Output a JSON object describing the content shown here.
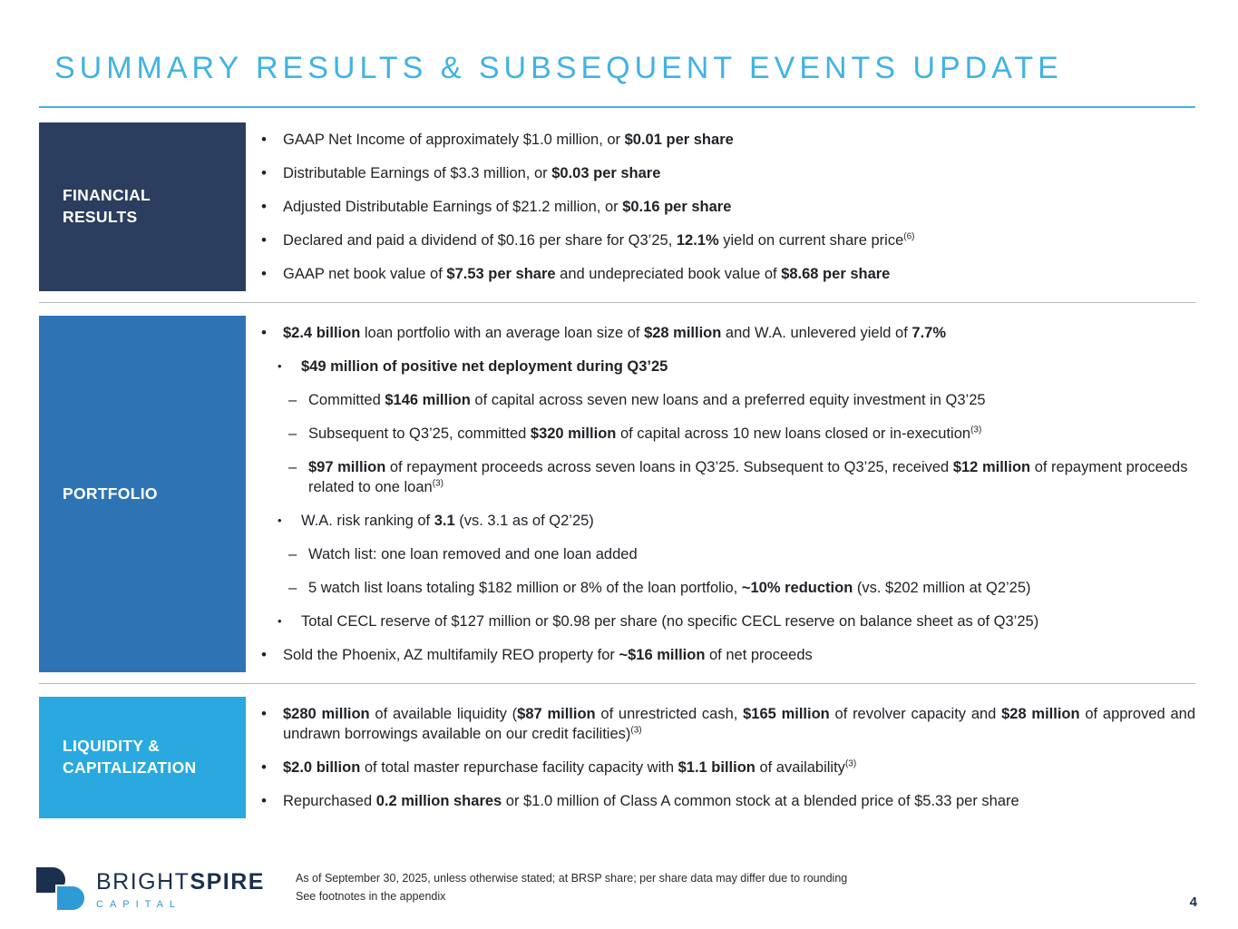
{
  "title": "SUMMARY RESULTS & SUBSEQUENT EVENTS UPDATE",
  "colors": {
    "title": "#41b3e2",
    "rule": "#41b3e2",
    "financial": "#2b3e60",
    "portfolio": "#2e74b5",
    "liquidity": "#29a9e0",
    "divider": "#b5b9bf",
    "text": "#1e2126",
    "page_number": "#1b2f4e"
  },
  "markers": {
    "dot": "•",
    "dash": "–"
  },
  "sections": [
    {
      "id": "financial-results",
      "label_lines": [
        "FINANCIAL",
        "RESULTS"
      ],
      "color_key": "financial",
      "bullets": [
        {
          "level": 0,
          "marker": "dot",
          "segments": [
            {
              "t": "GAAP Net Income of approximately $1.0 million, or "
            },
            {
              "t": "$0.01 per share",
              "b": true
            }
          ]
        },
        {
          "level": 0,
          "marker": "dot",
          "segments": [
            {
              "t": "Distributable Earnings of $3.3 million, or "
            },
            {
              "t": "$0.03 per share",
              "b": true
            }
          ]
        },
        {
          "level": 0,
          "marker": "dot",
          "segments": [
            {
              "t": "Adjusted Distributable Earnings of $21.2 million, or "
            },
            {
              "t": "$0.16 per share",
              "b": true
            }
          ]
        },
        {
          "level": 0,
          "marker": "dot",
          "segments": [
            {
              "t": "Declared and paid a dividend of $0.16 per share for Q3’25, "
            },
            {
              "t": "12.1%",
              "b": true
            },
            {
              "t": " yield on current share price"
            },
            {
              "t": "(6)",
              "sup": true
            }
          ]
        },
        {
          "level": 0,
          "marker": "dot",
          "segments": [
            {
              "t": "GAAP net book value of "
            },
            {
              "t": "$7.53 per share",
              "b": true
            },
            {
              "t": " and undepreciated book value of "
            },
            {
              "t": "$8.68 per share",
              "b": true
            }
          ]
        }
      ]
    },
    {
      "id": "portfolio",
      "label_lines": [
        "PORTFOLIO"
      ],
      "color_key": "portfolio",
      "bullets": [
        {
          "level": 0,
          "marker": "dot",
          "segments": [
            {
              "t": "$2.4 billion",
              "b": true
            },
            {
              "t": " loan portfolio with an average loan size of "
            },
            {
              "t": "$28 million",
              "b": true
            },
            {
              "t": " and W.A. unlevered yield of "
            },
            {
              "t": "7.7%",
              "b": true
            }
          ]
        },
        {
          "level": 1,
          "marker": "dot",
          "segments": [
            {
              "t": "$49 million of positive net deployment during Q3’25",
              "b": true
            }
          ]
        },
        {
          "level": 2,
          "marker": "dash",
          "segments": [
            {
              "t": "Committed "
            },
            {
              "t": "$146 million",
              "b": true
            },
            {
              "t": " of capital across seven new loans and a preferred equity investment in Q3’25"
            }
          ]
        },
        {
          "level": 2,
          "marker": "dash",
          "segments": [
            {
              "t": "Subsequent to Q3’25, committed "
            },
            {
              "t": "$320 million",
              "b": true
            },
            {
              "t": " of capital across 10 new loans closed or in-execution"
            },
            {
              "t": "(3)",
              "sup": true
            }
          ]
        },
        {
          "level": 2,
          "marker": "dash",
          "segments": [
            {
              "t": "$97 million",
              "b": true
            },
            {
              "t": " of repayment proceeds across seven loans in Q3’25. Subsequent to Q3’25, received "
            },
            {
              "t": "$12 million",
              "b": true
            },
            {
              "t": " of repayment proceeds related to one loan"
            },
            {
              "t": "(3)",
              "sup": true
            }
          ]
        },
        {
          "level": 1,
          "marker": "dot",
          "segments": [
            {
              "t": "W.A. risk ranking of "
            },
            {
              "t": "3.1",
              "b": true
            },
            {
              "t": " (vs. 3.1 as of Q2’25)"
            }
          ]
        },
        {
          "level": 2,
          "marker": "dash",
          "segments": [
            {
              "t": "Watch list: one loan removed and one loan added"
            }
          ]
        },
        {
          "level": 2,
          "marker": "dash",
          "segments": [
            {
              "t": "5 watch list loans totaling $182 million or 8% of the loan portfolio, "
            },
            {
              "t": "~10% reduction",
              "b": true
            },
            {
              "t": " (vs. $202 million at Q2’25)"
            }
          ]
        },
        {
          "level": 1,
          "marker": "dot",
          "segments": [
            {
              "t": "Total CECL reserve of $127 million or $0.98 per share (no specific CECL reserve on balance sheet as of Q3’25)"
            }
          ]
        },
        {
          "level": 0,
          "marker": "dot",
          "segments": [
            {
              "t": "Sold the Phoenix, AZ multifamily REO property for "
            },
            {
              "t": "~$16 million",
              "b": true
            },
            {
              "t": " of net proceeds"
            }
          ]
        }
      ]
    },
    {
      "id": "liquidity-capitalization",
      "label_lines": [
        "LIQUIDITY &",
        "CAPITALIZATION"
      ],
      "color_key": "liquidity",
      "bullets": [
        {
          "level": 0,
          "marker": "dot",
          "justify": true,
          "segments": [
            {
              "t": "$280 million",
              "b": true
            },
            {
              "t": " of available liquidity ("
            },
            {
              "t": "$87 million",
              "b": true
            },
            {
              "t": " of unrestricted cash, "
            },
            {
              "t": "$165 million",
              "b": true
            },
            {
              "t": " of revolver capacity and "
            },
            {
              "t": "$28 million",
              "b": true
            },
            {
              "t": " of approved and undrawn borrowings available on our credit facilities)"
            },
            {
              "t": "(3)",
              "sup": true
            }
          ]
        },
        {
          "level": 0,
          "marker": "dot",
          "segments": [
            {
              "t": "$2.0 billion",
              "b": true
            },
            {
              "t": " of total master repurchase facility capacity with "
            },
            {
              "t": "$1.1 billion",
              "b": true
            },
            {
              "t": " of availability"
            },
            {
              "t": "(3)",
              "sup": true
            }
          ]
        },
        {
          "level": 0,
          "marker": "dot",
          "segments": [
            {
              "t": "Repurchased "
            },
            {
              "t": "0.2 million shares",
              "b": true
            },
            {
              "t": " or $1.0 million of Class A common stock at a blended price of $5.33 per share"
            }
          ]
        }
      ]
    }
  ],
  "footer": {
    "logo": {
      "brand_regular": "BRIGHT",
      "brand_bold": "SPIRE",
      "subtext": "CAPITAL",
      "mark_icon": "brightspire-logo-icon"
    },
    "note_line1": "As of September 30, 2025, unless otherwise stated; at BRSP share; per share data may differ due to rounding",
    "note_line2": "See footnotes in the appendix",
    "page_number": "4"
  }
}
